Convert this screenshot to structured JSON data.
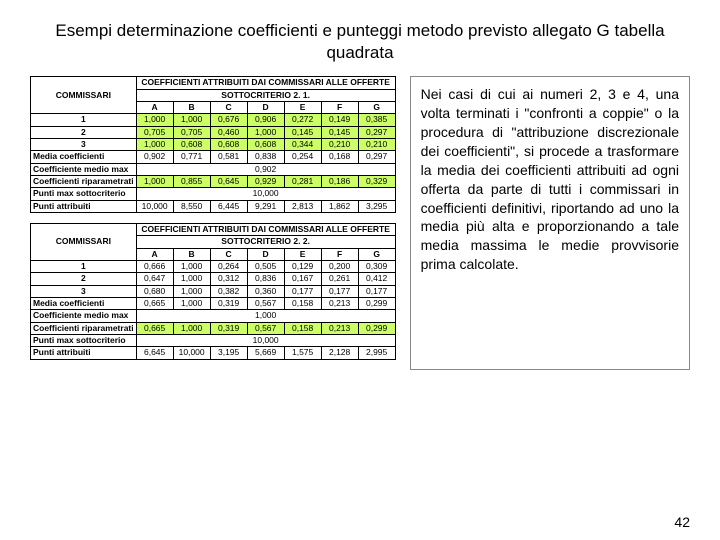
{
  "title": "Esempi determinazione coefficienti e punteggi metodo previsto allegato G tabella quadrata",
  "label_commissari": "COMMISSARI",
  "label_coef_head1": "COEFFICIENTI ATTRIBUITI DAI COMMISSARI ALLE OFFERTE",
  "sub21": "SOTTOCRITERIO  2. 1.",
  "sub22": "SOTTOCRITERIO  2. 2.",
  "cols": [
    "A",
    "B",
    "C",
    "D",
    "E",
    "F",
    "G"
  ],
  "rows_num": [
    "1",
    "2",
    "3"
  ],
  "row_media": "Media coefficienti",
  "row_medio_max": "Coefficiente medio max",
  "row_riparam": "Coefficienti riparametrati",
  "row_punti_max": "Punti max sottocriterio",
  "row_punti_attr": "Punti attribuiti",
  "t1": {
    "r1": [
      "1,000",
      "1,000",
      "0,676",
      "0,906",
      "0,272",
      "0,149",
      "0,385"
    ],
    "r2": [
      "0,705",
      "0,705",
      "0,460",
      "1,000",
      "0,145",
      "0,145",
      "0,297"
    ],
    "r3": [
      "1,000",
      "0,608",
      "0,608",
      "0,608",
      "0,344",
      "0,210",
      "0,210"
    ],
    "media": [
      "0,902",
      "0,771",
      "0,581",
      "0,838",
      "0,254",
      "0,168",
      "0,297"
    ],
    "medio_max": "0,902",
    "riparam": [
      "1,000",
      "0,855",
      "0,645",
      "0,929",
      "0,281",
      "0,186",
      "0,329"
    ],
    "punti_max": "10,000",
    "punti": [
      "10,000",
      "8,550",
      "6,445",
      "9,291",
      "2,813",
      "1,862",
      "3,295"
    ]
  },
  "t2": {
    "r1": [
      "0,666",
      "1,000",
      "0,264",
      "0,505",
      "0,129",
      "0,200",
      "0,309"
    ],
    "r2": [
      "0,647",
      "1,000",
      "0,312",
      "0,836",
      "0,167",
      "0,261",
      "0,412"
    ],
    "r3": [
      "0,680",
      "1,000",
      "0,382",
      "0,360",
      "0,177",
      "0,177",
      "0,177"
    ],
    "media": [
      "0,665",
      "1,000",
      "0,319",
      "0,567",
      "0,158",
      "0,213",
      "0,299"
    ],
    "medio_max": "1,000",
    "riparam": [
      "0,665",
      "1,000",
      "0,319",
      "0,567",
      "0,158",
      "0,213",
      "0,299"
    ],
    "punti_max": "10,000",
    "punti": [
      "6,645",
      "10,000",
      "3,195",
      "5,669",
      "1,575",
      "2,128",
      "2,995"
    ]
  },
  "sidetext": "Nei casi di cui ai numeri 2, 3 e 4, una volta terminati i \"confronti a coppie\" o la procedura di \"attribuzione discrezionale dei coefficienti\", si procede a trasformare la media dei coefficienti attribuiti ad ogni offerta da parte di tutti i commissari in coefficienti definitivi, riportando ad uno la media più alta e proporzionando a tale media massima le medie provvisorie prima calcolate.",
  "pagenum": "42"
}
